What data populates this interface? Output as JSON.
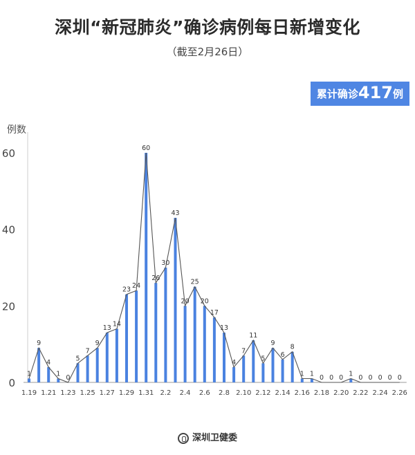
{
  "header": {
    "title": "深圳“新冠肺炎”确诊病例每日新增变化",
    "subtitle": "（截至2月26日）"
  },
  "badge": {
    "prefix": "累计确诊",
    "total": "417",
    "suffix": "例"
  },
  "footer": {
    "source": "深圳卫健委",
    "logo_icon": "health-commission-logo-icon"
  },
  "colors": {
    "bar": "#4a82e0",
    "line": "#555555",
    "badge": "#4f86e3"
  },
  "chart_data": {
    "type": "bar",
    "ylabel": "例数",
    "ylim": [
      0,
      60
    ],
    "yticks": [
      0,
      20,
      40,
      60
    ],
    "grid": false,
    "overlay_line": true,
    "categories": [
      "1.19",
      "1.20",
      "1.21",
      "1.22",
      "1.23",
      "1.24",
      "1.25",
      "1.26",
      "1.27",
      "1.28",
      "1.29",
      "1.30",
      "1.31",
      "2.1",
      "2.2",
      "2.3",
      "2.4",
      "2.5",
      "2.6",
      "2.7",
      "2.8",
      "2.9",
      "2.10",
      "2.11",
      "2.12",
      "2.13",
      "2.14",
      "2.15",
      "2.16",
      "2.17",
      "2.18",
      "2.19",
      "2.20",
      "2.21",
      "2.22",
      "2.23",
      "2.24",
      "2.25",
      "2.26"
    ],
    "xtick_labels": [
      "1.19",
      "1.21",
      "1.23",
      "1.25",
      "1.27",
      "1.29",
      "1.31",
      "2.2",
      "2.4",
      "2.6",
      "2.8",
      "2.10",
      "2.12",
      "2.14",
      "2.16",
      "2.18",
      "2.20",
      "2.22",
      "2.24",
      "2.26"
    ],
    "values": [
      1,
      9,
      4,
      1,
      0,
      5,
      7,
      9,
      13,
      14,
      23,
      24,
      60,
      26,
      30,
      43,
      20,
      25,
      20,
      17,
      13,
      4,
      7,
      11,
      5,
      9,
      6,
      8,
      1,
      1,
      0,
      0,
      0,
      1,
      0,
      0,
      0,
      0,
      0
    ]
  }
}
